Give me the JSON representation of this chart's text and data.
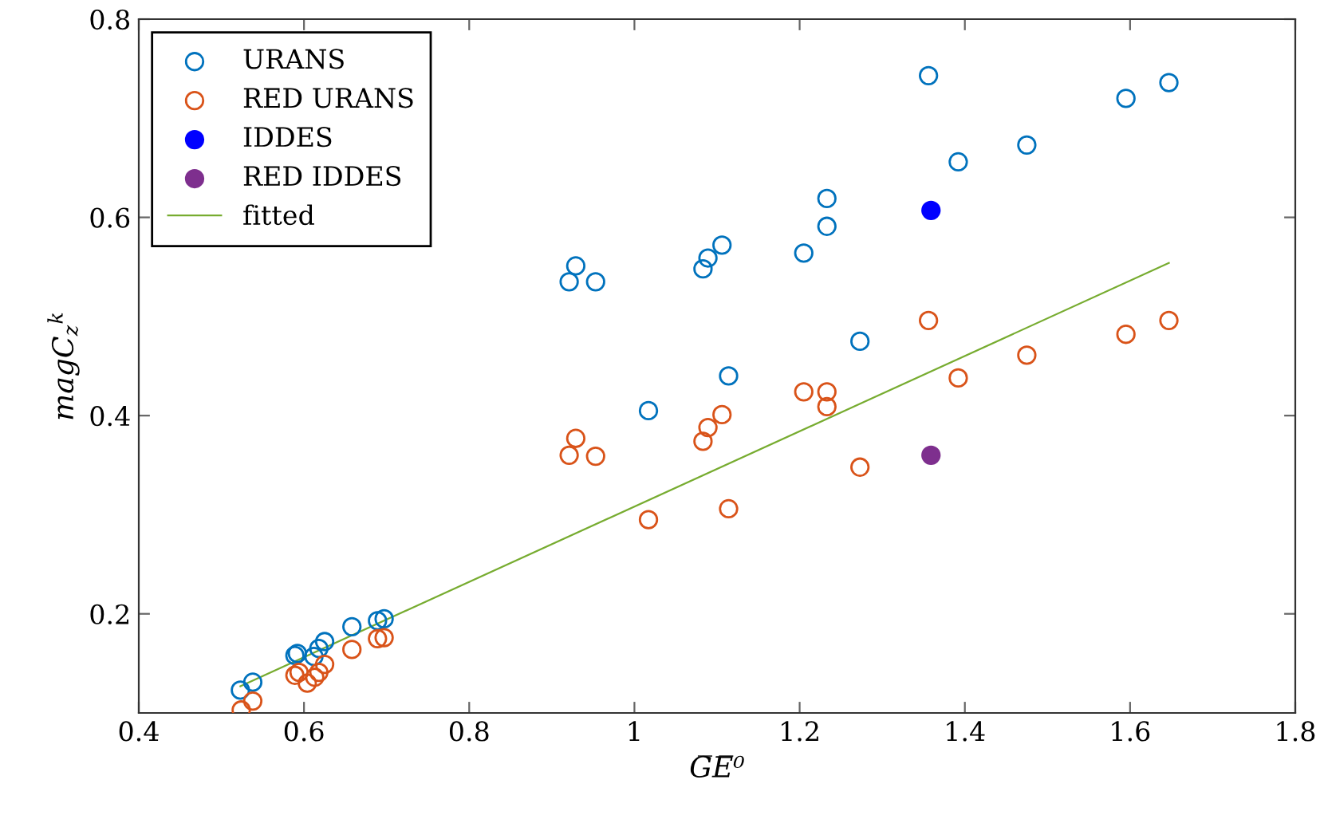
{
  "chart_data": {
    "type": "scatter",
    "xlabel": "G̅E̅⁰",
    "ylabel": "magC$_{z}$$^{k}$",
    "xlim": [
      0.4,
      1.8
    ],
    "ylim": [
      0.1,
      0.8
    ],
    "xticks": [
      0.4,
      0.6,
      0.8,
      1,
      1.2,
      1.4,
      1.6,
      1.8
    ],
    "yticks": [
      0.2,
      0.4,
      0.6,
      0.8
    ],
    "grid": false,
    "legend": "top left",
    "series": [
      {
        "name": "URANS",
        "color": "#0072bd",
        "marker": "circle",
        "x": [
          0.523,
          0.538,
          0.589,
          0.592,
          0.612,
          0.618,
          0.625,
          0.658,
          0.689,
          0.697,
          0.921,
          0.929,
          0.953,
          1.017,
          1.083,
          1.089,
          1.106,
          1.114,
          1.205,
          1.233,
          1.233,
          1.273,
          1.356,
          1.392,
          1.475,
          1.595,
          1.647
        ],
        "values": [
          0.123,
          0.131,
          0.158,
          0.16,
          0.157,
          0.165,
          0.172,
          0.187,
          0.193,
          0.195,
          0.535,
          0.551,
          0.535,
          0.405,
          0.548,
          0.559,
          0.572,
          0.44,
          0.564,
          0.591,
          0.619,
          0.475,
          0.743,
          0.656,
          0.673,
          0.72,
          0.736
        ]
      },
      {
        "name": "RED URANS",
        "color": "#d95319",
        "marker": "circle",
        "x": [
          0.524,
          0.538,
          0.589,
          0.594,
          0.604,
          0.613,
          0.618,
          0.625,
          0.658,
          0.689,
          0.697,
          0.921,
          0.929,
          0.953,
          1.017,
          1.083,
          1.089,
          1.106,
          1.114,
          1.205,
          1.233,
          1.233,
          1.273,
          1.356,
          1.392,
          1.475,
          1.595,
          1.647
        ],
        "values": [
          0.103,
          0.112,
          0.138,
          0.141,
          0.13,
          0.136,
          0.141,
          0.149,
          0.164,
          0.175,
          0.176,
          0.36,
          0.377,
          0.359,
          0.295,
          0.374,
          0.388,
          0.401,
          0.306,
          0.424,
          0.424,
          0.409,
          0.348,
          0.496,
          0.438,
          0.461,
          0.482,
          0.496
        ]
      },
      {
        "name": "IDDES",
        "color": "#0000ff",
        "marker": "circle",
        "x": [
          1.359
        ],
        "values": [
          0.607
        ]
      },
      {
        "name": "RED IDDES",
        "color": "#7e2f8e",
        "marker": "circle",
        "x": [
          1.359
        ],
        "values": [
          0.36
        ]
      },
      {
        "name": "fitted",
        "type": "line",
        "color": "#77ac30",
        "marker": "none",
        "x": [
          0.523,
          1.647
        ],
        "values": [
          0.127,
          0.554
        ]
      }
    ]
  }
}
